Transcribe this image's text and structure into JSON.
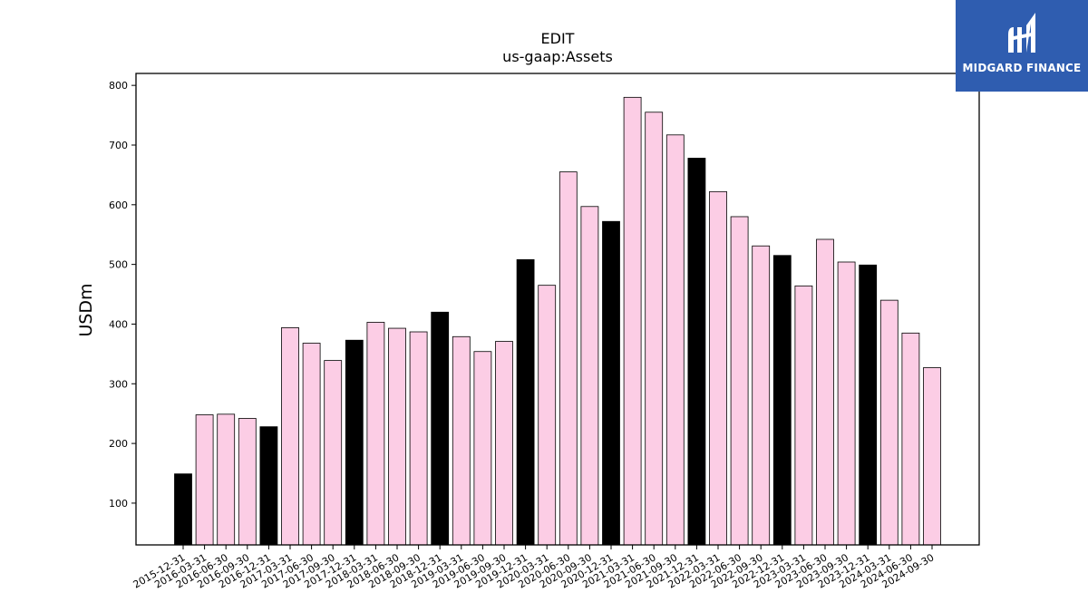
{
  "logo": {
    "text": "MIDGARD FINANCE",
    "background": "#2f5db0"
  },
  "chart_data": {
    "type": "bar",
    "title": "EDIT",
    "subtitle": "us-gaap:Assets",
    "ylabel": "USDm",
    "xlabel": "",
    "ylim": [
      30,
      820
    ],
    "yticks": [
      100,
      200,
      300,
      400,
      500,
      600,
      700,
      800
    ],
    "colors": {
      "year_end": "#000000",
      "quarter": "#fccde5",
      "edge": "#000000"
    },
    "categories": [
      "2015-12-31",
      "2016-03-31",
      "2016-06-30",
      "2016-09-30",
      "2016-12-31",
      "2017-03-31",
      "2017-06-30",
      "2017-09-30",
      "2017-12-31",
      "2018-03-31",
      "2018-06-30",
      "2018-09-30",
      "2018-12-31",
      "2019-03-31",
      "2019-06-30",
      "2019-09-30",
      "2019-12-31",
      "2020-03-31",
      "2020-06-30",
      "2020-09-30",
      "2020-12-31",
      "2021-03-31",
      "2021-06-30",
      "2021-09-30",
      "2021-12-31",
      "2022-03-31",
      "2022-06-30",
      "2022-09-30",
      "2022-12-31",
      "2023-03-31",
      "2023-06-30",
      "2023-09-30",
      "2023-12-31",
      "2024-03-31",
      "2024-06-30",
      "2024-09-30"
    ],
    "values": [
      149,
      248,
      249,
      242,
      228,
      394,
      368,
      339,
      373,
      403,
      393,
      387,
      420,
      379,
      354,
      371,
      508,
      465,
      655,
      597,
      572,
      780,
      755,
      717,
      678,
      622,
      580,
      531,
      515,
      464,
      542,
      504,
      499,
      440,
      385,
      327
    ]
  }
}
